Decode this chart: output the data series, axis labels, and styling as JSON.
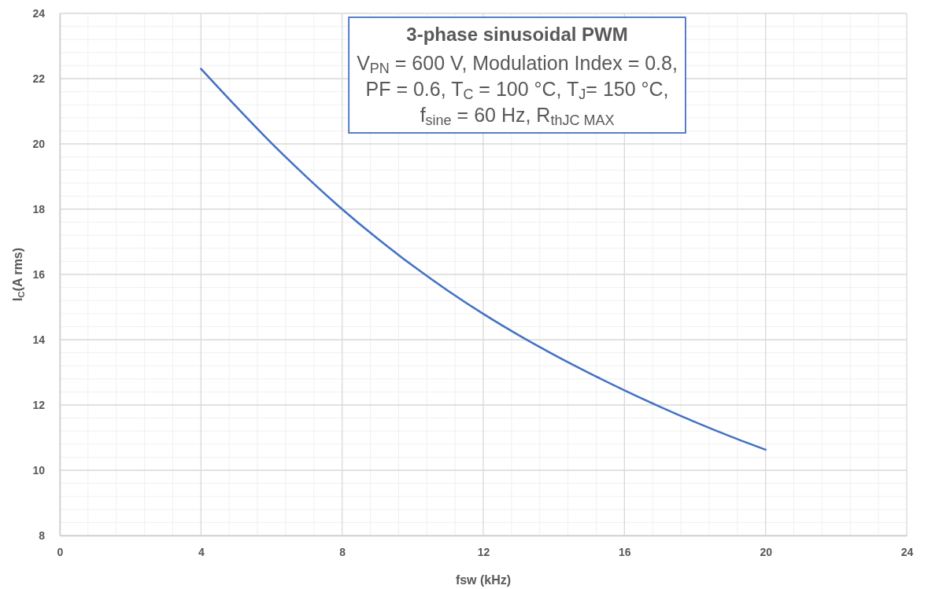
{
  "chart_data": {
    "type": "line",
    "title": "3-phase sinusoidal PWM",
    "annotations": [
      "V$_{PN}$ = 600 V, Modulation Index = 0.8,",
      "PF = 0.6, T$_{C}$ = 100 °C, T$_{J}$= 150 °C,",
      "f$_{sine}$ = 60 Hz, R$_{thJC MAX}$"
    ],
    "xlabel": "fsw (kHz)",
    "ylabel": "I$_{C}$(A rms)",
    "x": [
      4,
      5,
      6,
      7,
      8,
      9,
      10,
      11,
      12,
      13,
      14,
      15,
      16,
      17,
      18,
      19,
      20
    ],
    "series": [
      {
        "color": "#4472c4",
        "values": [
          22.3,
          21.14,
          20.02,
          18.98,
          18.0,
          17.1,
          16.27,
          15.5,
          14.79,
          14.14,
          13.54,
          12.98,
          12.45,
          11.95,
          11.48,
          11.04,
          10.63
        ]
      }
    ],
    "xlim": [
      0,
      24
    ],
    "ylim": [
      8,
      24
    ],
    "xticks": [
      0,
      4,
      8,
      12,
      16,
      20,
      24
    ],
    "yticks": [
      8,
      10,
      12,
      14,
      16,
      18,
      20,
      22,
      24
    ],
    "grid": true
  }
}
